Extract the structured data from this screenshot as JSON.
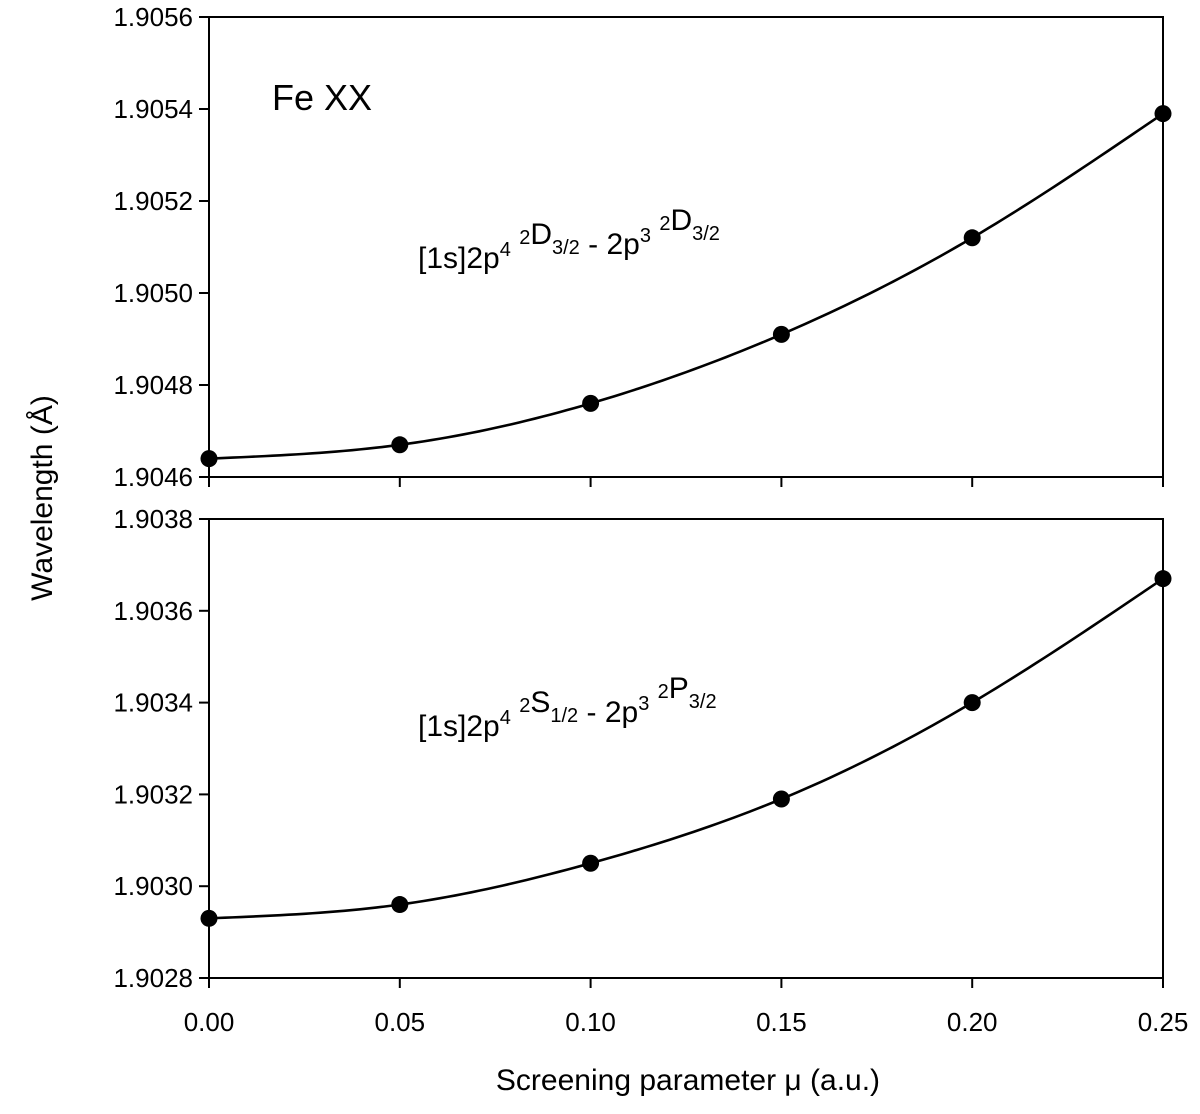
{
  "chart_data": [
    {
      "type": "line",
      "panel": "top",
      "ion_label": "Fe XX",
      "annotation": {
        "segments": [
          {
            "text": "[1s]2p"
          },
          {
            "text": "4",
            "sup": true
          },
          {
            "text": " "
          },
          {
            "text": "2",
            "sup": true
          },
          {
            "text": "D"
          },
          {
            "text": "3/2",
            "sub": true
          },
          {
            "text": " - 2p"
          },
          {
            "text": "3",
            "sup": true
          },
          {
            "text": " "
          },
          {
            "text": "2",
            "sup": true
          },
          {
            "text": "D"
          },
          {
            "text": "3/2",
            "sub": true
          }
        ]
      },
      "x": [
        0.0,
        0.05,
        0.1,
        0.15,
        0.2,
        0.25
      ],
      "y": [
        1.90464,
        1.90467,
        1.90476,
        1.90491,
        1.90512,
        1.90539
      ],
      "ylim": [
        1.9046,
        1.9056
      ],
      "yticks": [
        "1.9046",
        "1.9048",
        "1.9050",
        "1.9052",
        "1.9054",
        "1.9056"
      ],
      "xlim": [
        0,
        0.25
      ],
      "grid": false
    },
    {
      "type": "line",
      "panel": "bottom",
      "annotation": {
        "segments": [
          {
            "text": "[1s]2p"
          },
          {
            "text": "4",
            "sup": true
          },
          {
            "text": " "
          },
          {
            "text": "2",
            "sup": true
          },
          {
            "text": "S"
          },
          {
            "text": "1/2",
            "sub": true
          },
          {
            "text": " - 2p"
          },
          {
            "text": "3",
            "sup": true
          },
          {
            "text": " "
          },
          {
            "text": "2",
            "sup": true
          },
          {
            "text": "P"
          },
          {
            "text": "3/2",
            "sub": true
          }
        ]
      },
      "x": [
        0.0,
        0.05,
        0.1,
        0.15,
        0.2,
        0.25
      ],
      "y": [
        1.90293,
        1.90296,
        1.90305,
        1.90319,
        1.9034,
        1.90367
      ],
      "ylim": [
        1.9028,
        1.9038
      ],
      "yticks": [
        "1.9028",
        "1.9030",
        "1.9032",
        "1.9034",
        "1.9036",
        "1.9038"
      ],
      "xlim": [
        0,
        0.25
      ],
      "xticks": [
        "0.00",
        "0.05",
        "0.10",
        "0.15",
        "0.20",
        "0.25"
      ],
      "grid": false
    }
  ],
  "axes": {
    "ylabel": "Wavelength (Å)",
    "xlabel": "Screening parameter μ (a.u.)"
  }
}
